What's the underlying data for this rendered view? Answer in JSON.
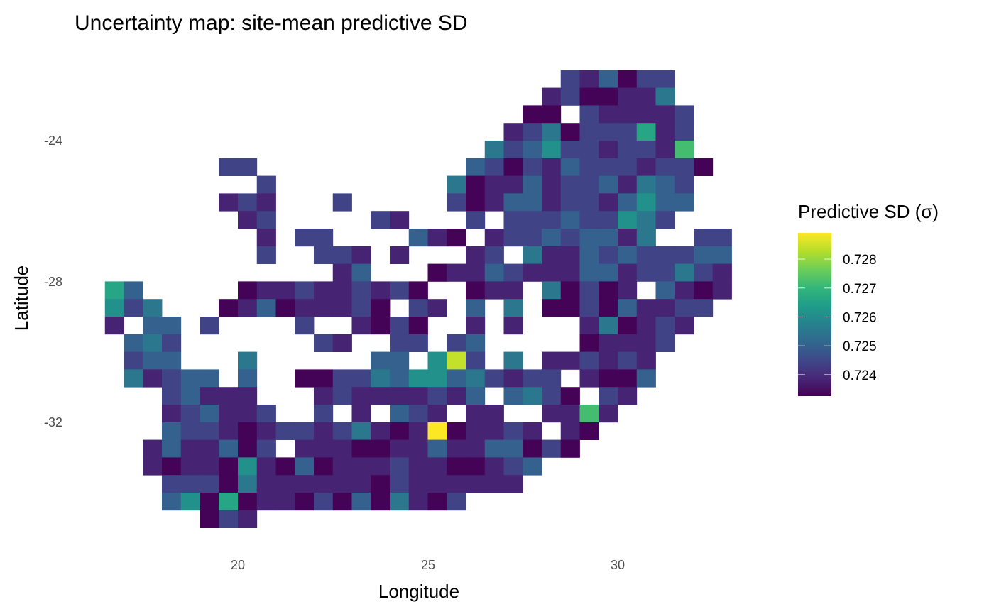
{
  "chart_data": {
    "type": "heatmap",
    "title": "Uncertainty map: site-mean predictive SD",
    "xlabel": "Longitude",
    "ylabel": "Latitude",
    "x_ticks": [
      20,
      25,
      30
    ],
    "x_tick_labels": [
      "20",
      "25",
      "30"
    ],
    "y_ticks": [
      -24,
      -28,
      -32
    ],
    "y_tick_labels": [
      "-24",
      "-28",
      "-32"
    ],
    "xlim": [
      16.5,
      33
    ],
    "ylim": [
      -35,
      -22
    ],
    "grid": false,
    "cell_size_deg": 0.5,
    "first_cell_center": {
      "lon": 16.75,
      "lat": -22.25
    },
    "colormap": "viridis",
    "legend": {
      "title": "Predictive SD (σ)",
      "placement": "right",
      "range": [
        0.72326,
        0.72891
      ],
      "ticks": [
        0.724,
        0.725,
        0.726,
        0.727,
        0.728
      ],
      "tick_labels": [
        "0.724",
        "0.725",
        "0.726",
        "0.727",
        "0.728"
      ]
    },
    "code_values": {
      "0": 0.7233,
      "1": 0.7238,
      "2": 0.7244,
      "3": 0.725,
      "4": 0.7255,
      "5": 0.7261,
      "6": 0.7266,
      "7": 0.7272,
      "9": 0.7284,
      "A": 0.7289
    },
    "rows_note_lat_desc": true,
    "grid_codes": [
      "........................213022...",
      ".......................1200114...",
      "......................00.211112..",
      ".....................1240222612..",
      "....................42352212217..",
      "......22...........3202132221220.",
      "........2.........4011312231432..",
      "......121...2.....2013312213533..",
      ".......12.....21...2.222322542...",
      "........1.22....310.122323314..22",
      "........2..221.1...12.41132322233",
      "............13...0113211133122421",
      "63.....0112112120..011.40201.3101",
      "524...013011120.21.3.4.002031122.",
      "1.33.2....2..1020..1.1...140121..",
      ".342.......21..22.23.....01112...",
      ".233...4......33.592.4.112121....",
      ".41233.3..00224355342122.1003....",
      "...23111...121111213.3420.21.....",
      "...123112..2.1.321.11..1171......",
      "...32210122124101A01121.10.......",
      "..1311302.111001131133020........",
      "..101105103011121100123..........",
      "...2220411111102111111...........",
      "...3506011020304102..............",
      ".....021........................."
    ]
  }
}
